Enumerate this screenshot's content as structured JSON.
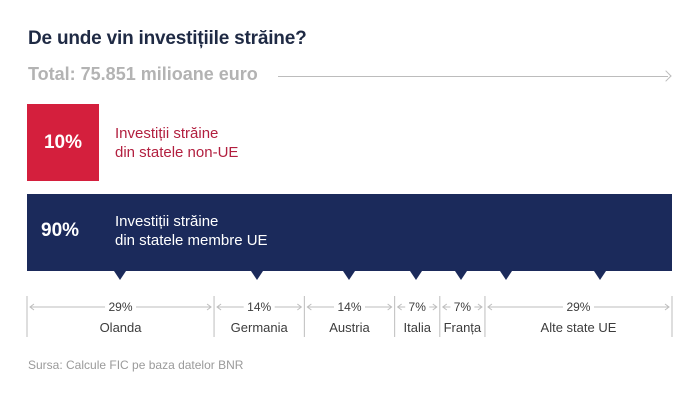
{
  "title": "De unde vin investițiile străine?",
  "total": "Total: 75.851 milioane euro",
  "colors": {
    "non_eu": "#d41f3d",
    "eu": "#1b2a5b",
    "non_eu_text": "#b21f3f",
    "muted": "#9a9a9a"
  },
  "non_eu": {
    "percent": "10%",
    "label_line1": "Investiții străine",
    "label_line2": "din statele non-UE"
  },
  "eu": {
    "percent": "90%",
    "label_line1": "Investiții străine",
    "label_line2": "din statele membre UE"
  },
  "source": "Sursa: Calcule FIC pe baza datelor BNR",
  "chart_data": [
    {
      "type": "bar",
      "categories": [
        "Investiții străine din statele non-UE",
        "Investiții străine din statele membre UE"
      ],
      "values": [
        10,
        90
      ],
      "total": 75851,
      "unit": "%"
    },
    {
      "type": "bar",
      "categories": [
        "Olanda",
        "Germania",
        "Austria",
        "Italia",
        "Franța",
        "Alte state UE"
      ],
      "values": [
        29,
        14,
        14,
        7,
        7,
        29
      ],
      "labels": [
        "29%",
        "14%",
        "14%",
        "7%",
        "7%",
        "29%"
      ],
      "unit": "%"
    }
  ]
}
